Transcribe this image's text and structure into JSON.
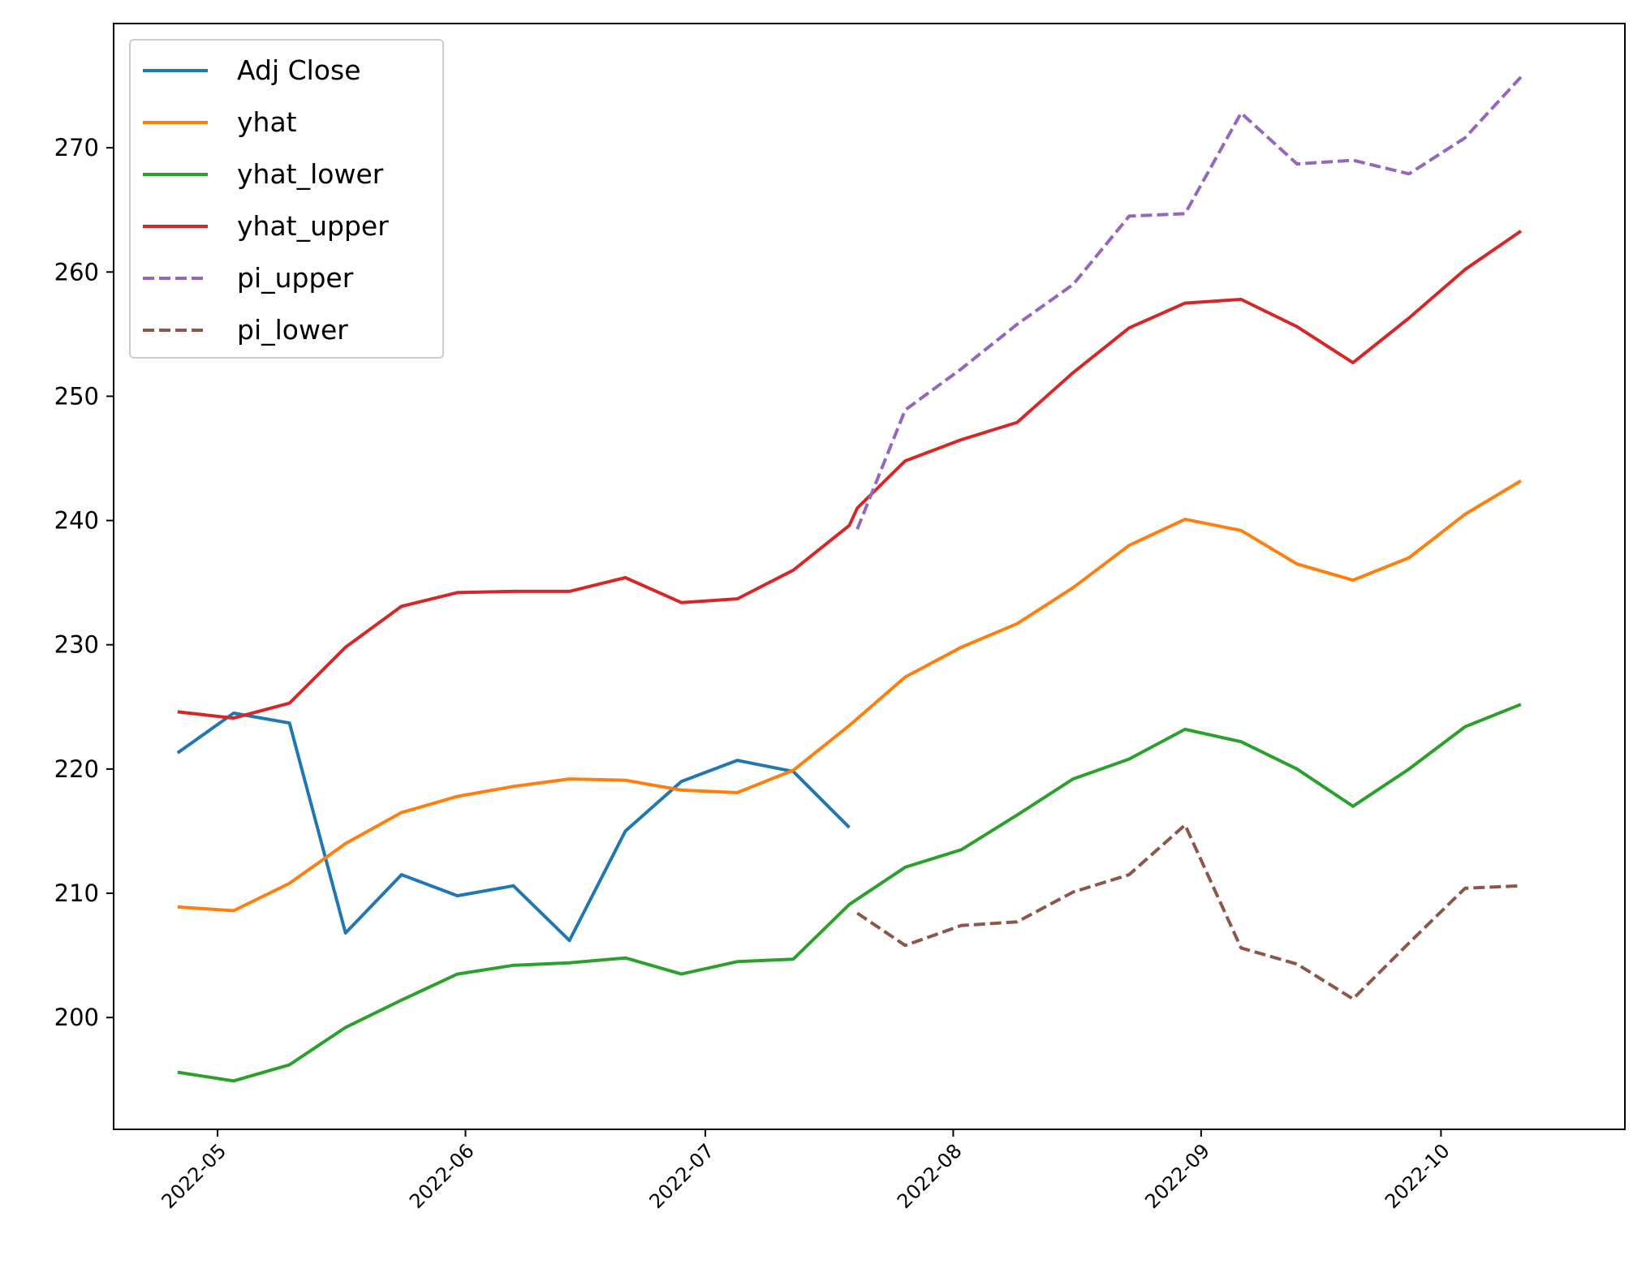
{
  "chart_data": {
    "type": "line",
    "title": "",
    "xlabel": "",
    "ylabel": "",
    "x_ticks": [
      {
        "date": "2022-05-01",
        "label": "2022-05"
      },
      {
        "date": "2022-06-01",
        "label": "2022-06"
      },
      {
        "date": "2022-07-01",
        "label": "2022-07"
      },
      {
        "date": "2022-08-01",
        "label": "2022-08"
      },
      {
        "date": "2022-09-01",
        "label": "2022-09"
      },
      {
        "date": "2022-10-01",
        "label": "2022-10"
      }
    ],
    "xlim": [
      "2022-04-18",
      "2022-10-24"
    ],
    "y_ticks": [
      200,
      210,
      220,
      230,
      240,
      250,
      260,
      270
    ],
    "ylim": [
      191,
      280
    ],
    "grid": false,
    "legend_position": "upper-left",
    "series": [
      {
        "name": "Adj Close",
        "color": "#1f77b4",
        "style": "solid",
        "points": [
          [
            "2022-04-26",
            221.3
          ],
          [
            "2022-05-03",
            224.5
          ],
          [
            "2022-05-10",
            223.7
          ],
          [
            "2022-05-17",
            206.8
          ],
          [
            "2022-05-24",
            211.5
          ],
          [
            "2022-05-31",
            209.8
          ],
          [
            "2022-06-07",
            210.6
          ],
          [
            "2022-06-14",
            206.2
          ],
          [
            "2022-06-21",
            215.0
          ],
          [
            "2022-06-28",
            219.0
          ],
          [
            "2022-07-05",
            220.7
          ],
          [
            "2022-07-12",
            219.8
          ],
          [
            "2022-07-19",
            215.3
          ]
        ]
      },
      {
        "name": "yhat",
        "color": "#ff7f0e",
        "style": "solid",
        "points": [
          [
            "2022-04-26",
            208.9
          ],
          [
            "2022-05-03",
            208.6
          ],
          [
            "2022-05-10",
            210.8
          ],
          [
            "2022-05-17",
            214.0
          ],
          [
            "2022-05-24",
            216.5
          ],
          [
            "2022-05-31",
            217.8
          ],
          [
            "2022-06-07",
            218.6
          ],
          [
            "2022-06-14",
            219.2
          ],
          [
            "2022-06-21",
            219.1
          ],
          [
            "2022-06-28",
            218.3
          ],
          [
            "2022-07-05",
            218.1
          ],
          [
            "2022-07-12",
            219.9
          ],
          [
            "2022-07-19",
            223.5
          ],
          [
            "2022-07-26",
            227.4
          ],
          [
            "2022-08-02",
            229.8
          ],
          [
            "2022-08-09",
            231.7
          ],
          [
            "2022-08-16",
            234.6
          ],
          [
            "2022-08-23",
            238.0
          ],
          [
            "2022-08-30",
            240.1
          ],
          [
            "2022-09-06",
            239.2
          ],
          [
            "2022-09-13",
            236.5
          ],
          [
            "2022-09-20",
            235.2
          ],
          [
            "2022-09-27",
            237.0
          ],
          [
            "2022-10-04",
            240.5
          ],
          [
            "2022-10-11",
            243.2
          ]
        ]
      },
      {
        "name": "yhat_lower",
        "color": "#2ca02c",
        "style": "solid",
        "points": [
          [
            "2022-04-26",
            195.6
          ],
          [
            "2022-05-03",
            194.9
          ],
          [
            "2022-05-10",
            196.2
          ],
          [
            "2022-05-17",
            199.2
          ],
          [
            "2022-05-24",
            201.4
          ],
          [
            "2022-05-31",
            203.5
          ],
          [
            "2022-06-07",
            204.2
          ],
          [
            "2022-06-14",
            204.4
          ],
          [
            "2022-06-21",
            204.8
          ],
          [
            "2022-06-28",
            203.5
          ],
          [
            "2022-07-05",
            204.5
          ],
          [
            "2022-07-12",
            204.7
          ],
          [
            "2022-07-19",
            209.1
          ],
          [
            "2022-07-26",
            212.1
          ],
          [
            "2022-08-02",
            213.5
          ],
          [
            "2022-08-09",
            216.3
          ],
          [
            "2022-08-16",
            219.2
          ],
          [
            "2022-08-23",
            220.8
          ],
          [
            "2022-08-30",
            223.2
          ],
          [
            "2022-09-06",
            222.2
          ],
          [
            "2022-09-13",
            220.0
          ],
          [
            "2022-09-20",
            217.0
          ],
          [
            "2022-09-27",
            220.0
          ],
          [
            "2022-10-04",
            223.4
          ],
          [
            "2022-10-11",
            225.2
          ]
        ]
      },
      {
        "name": "yhat_upper",
        "color": "#d62728",
        "style": "solid",
        "points": [
          [
            "2022-04-26",
            224.6
          ],
          [
            "2022-05-03",
            224.1
          ],
          [
            "2022-05-10",
            225.3
          ],
          [
            "2022-05-17",
            229.8
          ],
          [
            "2022-05-24",
            233.1
          ],
          [
            "2022-05-31",
            234.2
          ],
          [
            "2022-06-07",
            234.3
          ],
          [
            "2022-06-14",
            234.3
          ],
          [
            "2022-06-21",
            235.4
          ],
          [
            "2022-06-28",
            233.4
          ],
          [
            "2022-07-05",
            233.7
          ],
          [
            "2022-07-12",
            236.0
          ],
          [
            "2022-07-19",
            239.6
          ],
          [
            "2022-07-20",
            241.0
          ],
          [
            "2022-07-26",
            244.8
          ],
          [
            "2022-08-02",
            246.5
          ],
          [
            "2022-08-09",
            247.9
          ],
          [
            "2022-08-16",
            251.9
          ],
          [
            "2022-08-23",
            255.5
          ],
          [
            "2022-08-30",
            257.5
          ],
          [
            "2022-09-06",
            257.8
          ],
          [
            "2022-09-13",
            255.6
          ],
          [
            "2022-09-20",
            252.7
          ],
          [
            "2022-09-27",
            256.3
          ],
          [
            "2022-10-04",
            260.2
          ],
          [
            "2022-10-11",
            263.3
          ]
        ]
      },
      {
        "name": "pi_upper",
        "color": "#9467bd",
        "style": "dashed",
        "points": [
          [
            "2022-07-20",
            239.3
          ],
          [
            "2022-07-26",
            248.9
          ],
          [
            "2022-08-02",
            252.2
          ],
          [
            "2022-08-09",
            255.8
          ],
          [
            "2022-08-16",
            259.0
          ],
          [
            "2022-08-23",
            264.5
          ],
          [
            "2022-08-30",
            264.7
          ],
          [
            "2022-09-06",
            272.8
          ],
          [
            "2022-09-13",
            268.7
          ],
          [
            "2022-09-20",
            269.0
          ],
          [
            "2022-09-27",
            267.9
          ],
          [
            "2022-10-04",
            270.8
          ],
          [
            "2022-10-11",
            275.7
          ]
        ]
      },
      {
        "name": "pi_lower",
        "color": "#8c564b",
        "style": "dashed",
        "points": [
          [
            "2022-07-20",
            208.4
          ],
          [
            "2022-07-26",
            205.8
          ],
          [
            "2022-08-02",
            207.4
          ],
          [
            "2022-08-09",
            207.7
          ],
          [
            "2022-08-16",
            210.1
          ],
          [
            "2022-08-23",
            211.5
          ],
          [
            "2022-08-30",
            215.5
          ],
          [
            "2022-09-06",
            205.6
          ],
          [
            "2022-09-13",
            204.3
          ],
          [
            "2022-09-20",
            201.5
          ],
          [
            "2022-09-27",
            206.0
          ],
          [
            "2022-10-04",
            210.4
          ],
          [
            "2022-10-11",
            210.6
          ]
        ]
      }
    ]
  }
}
